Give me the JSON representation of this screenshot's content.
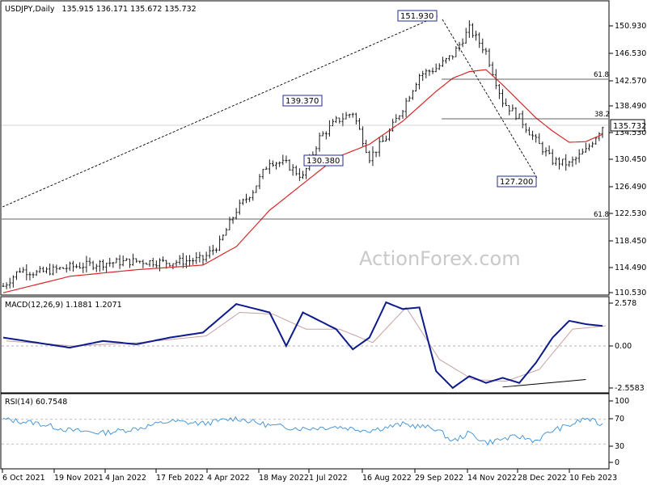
{
  "header": {
    "symbol": "USDJPY,Daily",
    "ohlc": "135.915 136.171 135.672 135.732"
  },
  "watermark": "ActionForex.com",
  "colors": {
    "candle": "#1a1a1a",
    "ma": "#d62828",
    "level": "#333333",
    "macd": "#0d1a8c",
    "signal": "#c8a0a0",
    "rsi": "#3a8fd6",
    "label_border": "#1f2a9a"
  },
  "chart_data": [
    {
      "type": "candlestick",
      "panel": "price",
      "yticks": [
        150.93,
        146.53,
        142.57,
        138.49,
        134.53,
        130.45,
        126.49,
        122.53,
        118.45,
        114.49,
        110.53
      ],
      "ytick_labels": [
        "150.930",
        "146.530",
        "142.570",
        "138.490",
        "134.530",
        "130.450",
        "126.490",
        "122.530",
        "118.450",
        "114.490",
        "110.530"
      ],
      "ylim": [
        110.53,
        150.93
      ],
      "x_labels": [
        "6 Oct 2021",
        "19 Nov 2021",
        "4 Jan 2022",
        "17 Feb 2022",
        "4 Apr 2022",
        "18 May 2022",
        "1 Jul 2022",
        "16 Aug 2022",
        "29 Sep 2022",
        "14 Nov 2022",
        "28 Dec 2022",
        "10 Feb 2023"
      ],
      "series": [
        {
          "kind": "price-close",
          "x": [
            0,
            10,
            20,
            40,
            60,
            80,
            100,
            120,
            130,
            140,
            150,
            160,
            170,
            180,
            190,
            200,
            210,
            220,
            230,
            240,
            250,
            260,
            270,
            280,
            290,
            300,
            310,
            320,
            330,
            340,
            350,
            360
          ],
          "values": [
            111.5,
            114.0,
            113.5,
            114.4,
            115.0,
            115.3,
            115.1,
            115.6,
            118.0,
            123.0,
            126.0,
            130.5,
            130.0,
            128.0,
            134.0,
            136.5,
            137.8,
            131.0,
            134.0,
            138.5,
            143.5,
            144.5,
            146.5,
            150.5,
            147.0,
            139.5,
            137.0,
            133.5,
            130.5,
            130.0,
            132.0,
            135.73
          ]
        },
        {
          "kind": "moving-average",
          "x": [
            0,
            40,
            80,
            120,
            140,
            160,
            180,
            200,
            220,
            240,
            260,
            270,
            280,
            290,
            300,
            310,
            320,
            330,
            340,
            350,
            360
          ],
          "values": [
            110.5,
            113.0,
            114.0,
            114.7,
            117.5,
            123.0,
            127.0,
            131.0,
            133.0,
            136.5,
            141.0,
            143.0,
            144.0,
            144.3,
            142.0,
            139.5,
            137.0,
            135.0,
            133.3,
            133.4,
            134.5
          ]
        }
      ],
      "annotations": [
        "151.930",
        "139.370",
        "130.380",
        "127.200",
        "61.8",
        "38.2",
        "61.8",
        "135.732"
      ],
      "levels": [
        {
          "label": "61.8",
          "value": 142.8
        },
        {
          "label": "38.2",
          "value": 137.3
        },
        {
          "label": "61.8",
          "value": 121.9
        }
      ],
      "last_price": 135.732,
      "title": "USDJPY,Daily"
    },
    {
      "type": "line",
      "panel": "macd",
      "title": "MACD(12,26,9) 1.1881 1.2071",
      "yticks": [
        2.578,
        0.0,
        -2.5583
      ],
      "ytick_labels": [
        "2.578",
        "0.00",
        "-2.5583"
      ],
      "series": [
        {
          "name": "MACD",
          "x": [
            0,
            20,
            40,
            60,
            80,
            100,
            120,
            140,
            160,
            170,
            180,
            190,
            200,
            210,
            220,
            230,
            240,
            250,
            260,
            270,
            280,
            290,
            300,
            310,
            320,
            330,
            340,
            350,
            360
          ],
          "values": [
            0.5,
            0.2,
            -0.1,
            0.3,
            0.1,
            0.5,
            0.8,
            2.5,
            2.0,
            0.0,
            2.0,
            1.5,
            1.0,
            -0.2,
            0.5,
            2.6,
            2.2,
            2.3,
            -1.5,
            -2.5,
            -1.8,
            -2.2,
            -1.9,
            -2.2,
            -1.0,
            0.5,
            1.5,
            1.3,
            1.19
          ]
        },
        {
          "name": "Signal",
          "x": [
            0,
            40,
            80,
            120,
            140,
            160,
            180,
            200,
            220,
            240,
            260,
            280,
            300,
            320,
            340,
            360
          ],
          "values": [
            0.3,
            0.0,
            0.2,
            0.6,
            2.0,
            1.9,
            1.0,
            1.0,
            0.2,
            2.3,
            -0.8,
            -2.0,
            -2.1,
            -1.4,
            1.0,
            1.2
          ]
        }
      ],
      "trend_line": {
        "x": [
          300,
          350
        ],
        "values": [
          -2.45,
          -2.0
        ]
      }
    },
    {
      "type": "line",
      "panel": "rsi",
      "title": "RSI(14) 60.7548",
      "yticks": [
        100,
        70,
        30,
        0
      ],
      "ytick_labels": [
        "100",
        "70",
        "30",
        "0"
      ],
      "ylim": [
        0,
        100
      ],
      "series": [
        {
          "name": "RSI(14)",
          "x": [
            0,
            20,
            40,
            60,
            80,
            100,
            120,
            140,
            160,
            180,
            200,
            220,
            240,
            260,
            270,
            280,
            290,
            300,
            310,
            320,
            330,
            340,
            350,
            360
          ],
          "values": [
            70,
            64,
            52,
            48,
            55,
            67,
            63,
            72,
            60,
            55,
            58,
            52,
            62,
            55,
            34,
            48,
            32,
            38,
            42,
            35,
            52,
            60,
            72,
            60.75
          ]
        }
      ],
      "levels": [
        70,
        30
      ]
    }
  ]
}
